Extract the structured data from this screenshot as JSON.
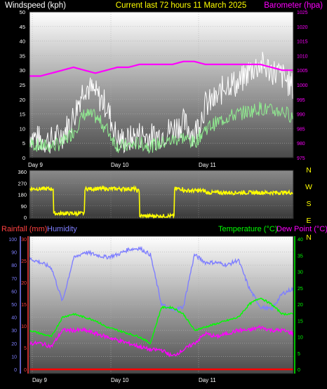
{
  "header": {
    "left_title": "Windspeed (kph)",
    "center_title": "Current last 72 hours 11 March 2025",
    "right_title": "Barometer (hpa)"
  },
  "colors": {
    "wind_title": "#ffffff",
    "center_title": "#ffff00",
    "baro": "#ff00ff",
    "wind_avg": "#90ee90",
    "wind_gust": "#ffffff",
    "direction": "#ffff00",
    "rain": "#ff0000",
    "humidity": "#7f7fff",
    "temp": "#00ff00",
    "dew": "#ff00ff",
    "rain_axis": "#ff4040",
    "hum_axis": "#7f7fff",
    "temp_axis": "#00ff00"
  },
  "lower_header": {
    "rain_label": "Rainfall (mm)",
    "hum_label": "Humidity",
    "temp_label": "Temperature (°C)",
    "dew_label": "Dew Point (°C)"
  },
  "compass": [
    "N",
    "W",
    "S",
    "E",
    "N"
  ],
  "chart_data": [
    {
      "type": "line",
      "name": "wind-baro",
      "xlabel": "",
      "x_ticks": [
        "Day 9",
        "Day 10",
        "Day 11"
      ],
      "y_left": {
        "label": "Windspeed (kph)",
        "ticks": [
          0,
          5,
          10,
          15,
          20,
          25,
          30,
          35,
          40,
          45,
          50
        ],
        "range": [
          0,
          50
        ]
      },
      "y_right": {
        "label": "Barometer (hpa)",
        "ticks": [
          975,
          980,
          985,
          990,
          995,
          1000,
          1005,
          1010,
          1015,
          1020,
          1025
        ],
        "range": [
          975,
          1025
        ]
      },
      "x_hours": [
        0,
        3,
        6,
        9,
        12,
        15,
        18,
        21,
        24,
        27,
        30,
        33,
        36,
        39,
        42,
        45,
        48,
        51,
        54,
        57,
        60,
        63,
        66,
        69,
        72
      ],
      "series": [
        {
          "name": "",
          "role": "gust",
          "values": [
            8,
            6,
            6,
            8,
            14,
            25,
            22,
            18,
            6,
            6,
            8,
            7,
            8,
            10,
            12,
            8,
            18,
            20,
            26,
            25,
            30,
            32,
            30,
            28,
            24
          ]
        },
        {
          "name": "",
          "role": "average",
          "values": [
            5,
            4,
            4,
            5,
            9,
            15,
            14,
            10,
            4,
            4,
            5,
            4,
            5,
            6,
            7,
            5,
            10,
            12,
            14,
            15,
            16,
            17,
            16,
            16,
            14
          ]
        },
        {
          "name": "",
          "role": "barometer",
          "values": [
            1003,
            1003,
            1004,
            1005,
            1006,
            1005,
            1004,
            1005,
            1006,
            1006,
            1007,
            1007,
            1007,
            1007,
            1008,
            1008,
            1007,
            1007,
            1007,
            1007,
            1007,
            1007,
            1006,
            1005,
            1005
          ]
        }
      ]
    },
    {
      "type": "scatter",
      "name": "wind-direction",
      "y_left": {
        "ticks": [
          0,
          90,
          180,
          270,
          360
        ],
        "range": [
          0,
          360
        ]
      },
      "x_hours": [
        0,
        3,
        6,
        6.5,
        9,
        12,
        13,
        15,
        18,
        21,
        24,
        27,
        29,
        30,
        33,
        36,
        39,
        39.5,
        42,
        48,
        54,
        60,
        66,
        72
      ],
      "values": [
        225,
        225,
        225,
        30,
        30,
        30,
        30,
        225,
        225,
        225,
        225,
        225,
        210,
        10,
        10,
        10,
        10,
        225,
        210,
        195,
        195,
        195,
        195,
        195
      ]
    },
    {
      "type": "line",
      "name": "rain-hum-temp",
      "x_ticks": [
        "Day 9",
        "Day 10",
        "Day 11"
      ],
      "y_left_rain": {
        "label": "Rainfall (mm)",
        "ticks": [
          0,
          5,
          10,
          15,
          20,
          25,
          30
        ],
        "range": [
          0,
          30
        ]
      },
      "y_left_hum": {
        "label": "Humidity",
        "ticks": [
          0,
          10,
          20,
          30,
          40,
          50,
          60,
          70,
          80,
          90,
          100
        ],
        "range": [
          0,
          100
        ]
      },
      "y_right": {
        "label": "Temperature (°C)",
        "ticks": [
          0,
          5,
          10,
          15,
          20,
          25,
          30,
          35,
          40
        ],
        "range": [
          0,
          40
        ]
      },
      "x_hours": [
        0,
        3,
        6,
        9,
        12,
        15,
        18,
        21,
        24,
        27,
        30,
        33,
        36,
        39,
        42,
        45,
        48,
        51,
        54,
        57,
        60,
        63,
        66,
        69,
        72
      ],
      "series": [
        {
          "name": "Humidity",
          "values": [
            85,
            82,
            78,
            52,
            85,
            90,
            88,
            86,
            88,
            92,
            93,
            88,
            50,
            45,
            48,
            88,
            82,
            82,
            80,
            84,
            62,
            48,
            46,
            58,
            62
          ]
        },
        {
          "name": "Temperature (°C)",
          "values": [
            12,
            11,
            10,
            16,
            17,
            16,
            15,
            13,
            12,
            11,
            10,
            8,
            19,
            19,
            17,
            12,
            13,
            14,
            15,
            16,
            20,
            22,
            20,
            17,
            17
          ]
        },
        {
          "name": "Dew Point (°C)",
          "values": [
            8,
            8,
            7,
            12,
            12,
            12,
            11,
            10,
            9,
            8,
            7,
            6,
            6,
            4,
            6,
            8,
            11,
            10,
            11,
            12,
            12,
            13,
            12,
            12,
            11
          ]
        },
        {
          "name": "Rainfall (mm)",
          "values": [
            0,
            0,
            0,
            0,
            0,
            0,
            0,
            0,
            0,
            0,
            0,
            0,
            0,
            0,
            0,
            0,
            0,
            0,
            0,
            0,
            0,
            0,
            0,
            0,
            0
          ]
        }
      ]
    }
  ]
}
